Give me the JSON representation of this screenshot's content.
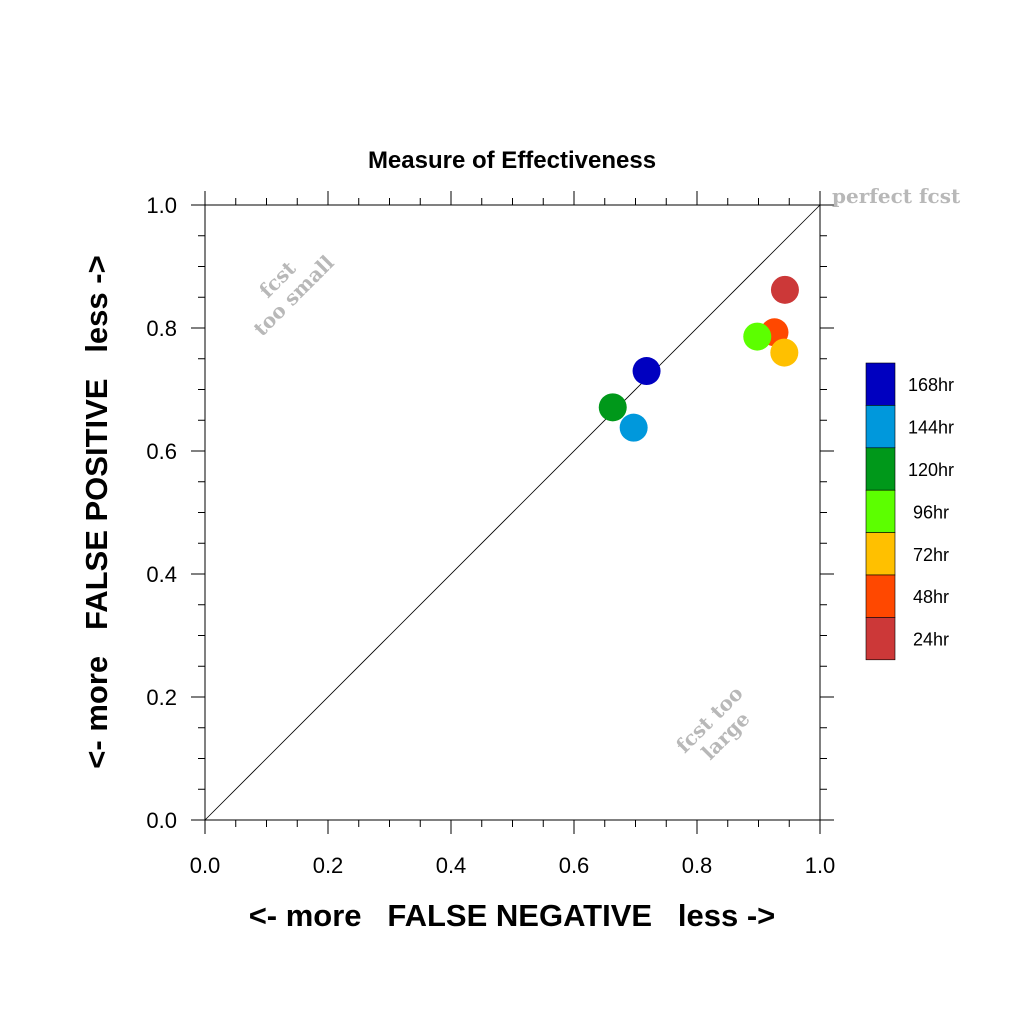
{
  "chart_data": {
    "type": "scatter",
    "title": "Measure of Effectiveness",
    "xlabel": "<- more   FALSE NEGATIVE   less ->",
    "ylabel": "<- more   FALSE POSITIVE   less ->",
    "xlim": [
      0.0,
      1.0
    ],
    "ylim": [
      0.0,
      1.0
    ],
    "x_tick_labels": [
      "0.0",
      "0.2",
      "0.4",
      "0.6",
      "0.8",
      "1.0"
    ],
    "y_tick_labels": [
      "0.0",
      "0.2",
      "0.4",
      "0.6",
      "0.8",
      "1.0"
    ],
    "grid": false,
    "diagonal_line": true,
    "legend_position": "right",
    "annotations": {
      "perfect": "perfect fcst",
      "too_small": [
        "fcst",
        "too small"
      ],
      "too_large": [
        "fcst too",
        "large"
      ]
    },
    "series": [
      {
        "name": "168hr",
        "color": "#0000c0",
        "x": 0.718,
        "y": 0.73
      },
      {
        "name": "144hr",
        "color": "#0098dc",
        "x": 0.697,
        "y": 0.638
      },
      {
        "name": "120hr",
        "color": "#00981a",
        "x": 0.663,
        "y": 0.671
      },
      {
        "name": "96hr",
        "color": "#5cff00",
        "x": 0.898,
        "y": 0.786
      },
      {
        "name": "72hr",
        "color": "#ffc000",
        "x": 0.942,
        "y": 0.76
      },
      {
        "name": "48hr",
        "color": "#ff4800",
        "x": 0.926,
        "y": 0.793
      },
      {
        "name": "24hr",
        "color": "#cc3838",
        "x": 0.943,
        "y": 0.862
      }
    ],
    "legend_order": [
      "168hr",
      "144hr",
      "120hr",
      "96hr",
      "72hr",
      "48hr",
      "24hr"
    ],
    "plot_order": [
      "120hr",
      "144hr",
      "168hr",
      "48hr",
      "96hr",
      "72hr",
      "24hr"
    ]
  }
}
